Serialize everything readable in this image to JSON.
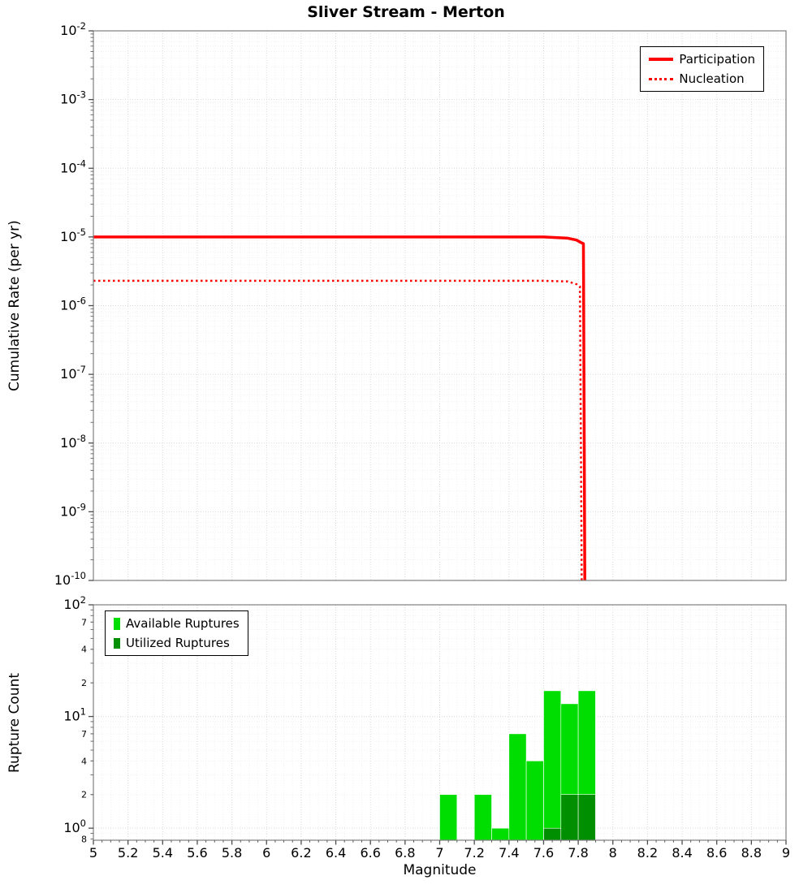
{
  "figure": {
    "background": "#ffffff"
  },
  "chart_data": [
    {
      "type": "line",
      "panel": "cumulative-rate",
      "title": "Sliver Stream - Merton",
      "ylabel": "Cumulative Rate (per yr)",
      "xlim": [
        5,
        9
      ],
      "ylim": [
        1e-10,
        0.01
      ],
      "yscale": "log",
      "xscale": "linear",
      "grid": true,
      "legend_position": "top-right",
      "y_tick_exponents": [
        -2,
        -3,
        -4,
        -5,
        -6,
        -7,
        -8,
        -9,
        -10
      ],
      "series": [
        {
          "name": "Participation",
          "color": "#ff0000",
          "line_style": "solid",
          "line_width": 3.5,
          "points": [
            [
              5.0,
              1e-05
            ],
            [
              7.6,
              1e-05
            ],
            [
              7.74,
              9.6e-06
            ],
            [
              7.79,
              9e-06
            ],
            [
              7.815,
              8.3e-06
            ],
            [
              7.83,
              8e-06
            ],
            [
              7.838,
              1e-10
            ]
          ]
        },
        {
          "name": "Nucleation",
          "color": "#ff0000",
          "line_style": "dotted",
          "line_width": 2.5,
          "points": [
            [
              5.0,
              2.3e-06
            ],
            [
              7.6,
              2.3e-06
            ],
            [
              7.74,
              2.25e-06
            ],
            [
              7.79,
              2.05e-06
            ],
            [
              7.81,
              1.9e-06
            ],
            [
              7.82,
              1e-10
            ]
          ]
        }
      ]
    },
    {
      "type": "bar",
      "panel": "rupture-count",
      "xlabel": "Magnitude",
      "ylabel": "Rupture Count",
      "xlim": [
        5,
        9
      ],
      "ylim": [
        0.78,
        100
      ],
      "yscale": "log",
      "grid": true,
      "bar_width": 0.1,
      "legend_position": "top-left",
      "y_tick_exponents": [
        2,
        1,
        0
      ],
      "y_minor_tick_labels": [
        {
          "value": 70,
          "label": "7"
        },
        {
          "value": 40,
          "label": "4"
        },
        {
          "value": 20,
          "label": "2"
        },
        {
          "value": 7,
          "label": "7"
        },
        {
          "value": 4,
          "label": "4"
        },
        {
          "value": 2,
          "label": "2"
        },
        {
          "value": 0.8,
          "label": "8"
        }
      ],
      "x_ticks": [
        {
          "value": 5,
          "label": "5"
        },
        {
          "value": 5.2,
          "label": "5.2"
        },
        {
          "value": 5.4,
          "label": "5.4"
        },
        {
          "value": 5.6,
          "label": "5.6"
        },
        {
          "value": 5.8,
          "label": "5.8"
        },
        {
          "value": 6,
          "label": "6"
        },
        {
          "value": 6.2,
          "label": "6.2"
        },
        {
          "value": 6.4,
          "label": "6.4"
        },
        {
          "value": 6.6,
          "label": "6.6"
        },
        {
          "value": 6.8,
          "label": "6.8"
        },
        {
          "value": 7,
          "label": "7"
        },
        {
          "value": 7.2,
          "label": "7.2"
        },
        {
          "value": 7.4,
          "label": "7.4"
        },
        {
          "value": 7.6,
          "label": "7.6"
        },
        {
          "value": 7.8,
          "label": "7.8"
        },
        {
          "value": 8,
          "label": "8"
        },
        {
          "value": 8.2,
          "label": "8.2"
        },
        {
          "value": 8.4,
          "label": "8.4"
        },
        {
          "value": 8.6,
          "label": "8.6"
        },
        {
          "value": 8.8,
          "label": "8.8"
        },
        {
          "value": 9,
          "label": "9"
        }
      ],
      "series": [
        {
          "name": "Available Ruptures",
          "color": "#00dd00",
          "bins": [
            {
              "magnitude": 7.05,
              "count": 2
            },
            {
              "magnitude": 7.25,
              "count": 2
            },
            {
              "magnitude": 7.35,
              "count": 1
            },
            {
              "magnitude": 7.45,
              "count": 7
            },
            {
              "magnitude": 7.55,
              "count": 4
            },
            {
              "magnitude": 7.65,
              "count": 17
            },
            {
              "magnitude": 7.75,
              "count": 13
            },
            {
              "magnitude": 7.85,
              "count": 17
            }
          ]
        },
        {
          "name": "Utilized Ruptures",
          "color": "#008f00",
          "bins": [
            {
              "magnitude": 7.65,
              "count": 1
            },
            {
              "magnitude": 7.75,
              "count": 2
            },
            {
              "magnitude": 7.85,
              "count": 2
            }
          ]
        }
      ]
    }
  ]
}
